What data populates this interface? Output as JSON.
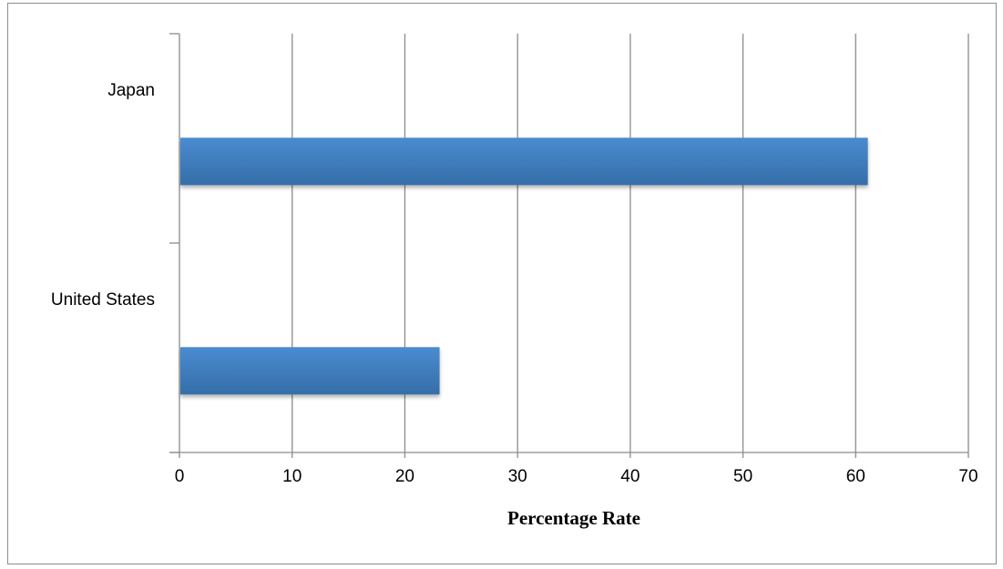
{
  "chart_data": {
    "type": "bar",
    "orientation": "horizontal",
    "categories": [
      "Japan",
      "United States"
    ],
    "values": [
      61,
      23
    ],
    "title": "",
    "xlabel": "Percentage Rate",
    "ylabel": "",
    "xlim": [
      0,
      70
    ],
    "xticks": [
      "0",
      "10",
      "20",
      "30",
      "40",
      "50",
      "60",
      "70"
    ],
    "grid": "vertical",
    "legend": "none",
    "bar_color": "#4a8bd0",
    "bar_color_dark": "#356ea8",
    "grid_color": "#8c8c8c"
  }
}
